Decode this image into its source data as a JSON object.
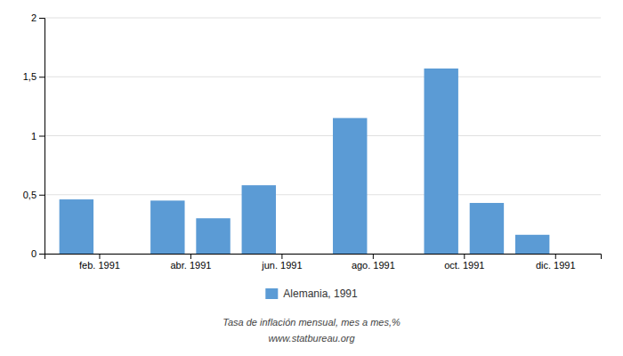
{
  "chart_data": {
    "type": "bar",
    "x": [
      1,
      3,
      4,
      5,
      7,
      9,
      10,
      11
    ],
    "series": [
      {
        "name": "Alemania, 1991",
        "color": "#5b9bd5",
        "values": [
          0.46,
          0.45,
          0.3,
          0.58,
          1.15,
          1.57,
          0.43,
          0.16
        ]
      }
    ],
    "xlim": [
      0.3,
      12.5
    ],
    "xticks": [
      {
        "value": 1.5,
        "label": "feb. 1991"
      },
      {
        "value": 3.5,
        "label": "abr. 1991"
      },
      {
        "value": 5.5,
        "label": "jun. 1991"
      },
      {
        "value": 7.5,
        "label": "ago. 1991"
      },
      {
        "value": 9.5,
        "label": "oct. 1991"
      },
      {
        "value": 11.5,
        "label": "dic. 1991"
      }
    ],
    "ylim": [
      0,
      2.0
    ],
    "yticks": [
      0,
      {
        "value": 0.5,
        "label": "0,5"
      },
      1,
      {
        "value": 1.5,
        "label": "1,5"
      },
      2
    ],
    "grid": true,
    "legend": "bottom",
    "annotations": [
      "Tasa de inflación mensual, mes a mes,%",
      "www.statbureau.org"
    ]
  }
}
